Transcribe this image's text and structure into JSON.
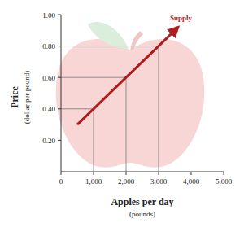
{
  "chart_data": {
    "type": "line",
    "y_label": "Price",
    "y_sublabel": "(dollar per pound)",
    "x_label": "Apples per day",
    "x_sublabel": "(pounds)",
    "x": [
      500,
      1000,
      2000,
      3000,
      3600
    ],
    "series": [
      {
        "name": "Supply",
        "color": "#b01c1c",
        "values": [
          0.3,
          0.4,
          0.6,
          0.8,
          0.92
        ],
        "line_style": "solid",
        "marker": "arrow"
      }
    ],
    "xlim": [
      0,
      5000
    ],
    "xticks": [
      0,
      {
        "value": 1000,
        "label": "1,000"
      },
      {
        "value": 2000,
        "label": "2,000"
      },
      {
        "value": 3000,
        "label": "3,000"
      },
      {
        "value": 4000,
        "label": "4,000"
      },
      {
        "value": 5000,
        "label": "5,000"
      }
    ],
    "ylim": [
      0,
      1.0
    ],
    "yticks": [
      {
        "value": 0.2,
        "label": "0.20"
      },
      {
        "value": 0.4,
        "label": "0.40"
      },
      {
        "value": 0.6,
        "label": "0.60"
      },
      {
        "value": 0.8,
        "label": "0.80"
      },
      {
        "value": 1.0,
        "label": "1.00"
      }
    ],
    "grid": false
  }
}
